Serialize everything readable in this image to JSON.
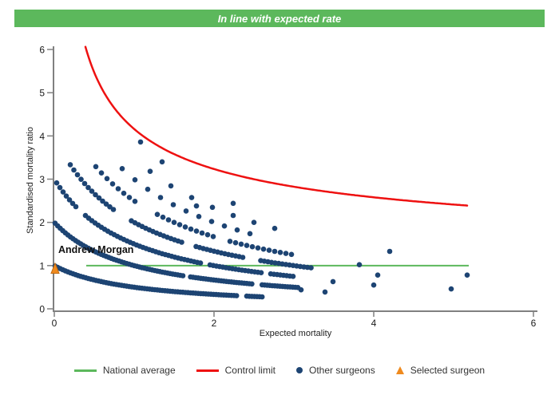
{
  "banner": {
    "text": "In line with expected rate",
    "bg_color": "#5cb85c",
    "text_color": "#ffffff"
  },
  "chart_data": {
    "type": "scatter",
    "title": "In line with expected rate",
    "xlabel": "Expected mortality",
    "ylabel": "Standardised mortality ratio",
    "xlim": [
      0,
      6
    ],
    "ylim": [
      0,
      6
    ],
    "x_ticks": [
      0,
      2,
      4,
      6
    ],
    "y_ticks": [
      0,
      1,
      2,
      3,
      4,
      5,
      6
    ],
    "grid": false,
    "axis_color": "#808080",
    "tick_label_color": "#1a1a1a",
    "national_average": {
      "label": "National average",
      "color": "#5cb85c",
      "y": 1.0,
      "x_start": 0.4,
      "x_end": 5.19
    },
    "control_limit": {
      "label": "Control limit",
      "color": "#ee1111",
      "formula": "y = base + k / sqrt(x)",
      "base": 1,
      "k": 3.16,
      "x_start": 0.39,
      "x_end": 5.17,
      "y_end": 2.39
    },
    "other_surgeons": {
      "label": "Other surgeons",
      "color": "#1d4473",
      "bands_rule": "y = deaths / (1 + x)",
      "bands": [
        {
          "deaths": 1,
          "x_start": 0.01,
          "x_end": 2.62,
          "step": 0.032,
          "gaps": [
            [
              2.3,
              2.38
            ]
          ]
        },
        {
          "deaths": 2,
          "x_start": 0.01,
          "x_end": 3.05,
          "step": 0.032,
          "gaps": [
            [
              1.62,
              1.7
            ],
            [
              2.48,
              2.58
            ]
          ]
        },
        {
          "deaths": 3,
          "x_start": 0.03,
          "x_end": 3.02,
          "step": 0.04,
          "gaps": [
            [
              0.3,
              0.38
            ],
            [
              1.85,
              1.95
            ],
            [
              2.6,
              2.7
            ]
          ]
        },
        {
          "deaths": 4,
          "x_start": 0.2,
          "x_end": 3.25,
          "step": 0.045,
          "gaps": [
            [
              0.75,
              0.95
            ],
            [
              1.6,
              1.75
            ],
            [
              2.4,
              2.55
            ]
          ]
        },
        {
          "deaths": 5,
          "x_start": 0.52,
          "x_end": 2.98,
          "step": 0.07,
          "gaps": [
            [
              1.05,
              1.25
            ],
            [
              2.0,
              2.2
            ]
          ]
        },
        {
          "deaths": 6,
          "x_start": 0.85,
          "x_end": 2.6,
          "step": 0.16,
          "gaps": []
        },
        {
          "deaths": 7,
          "x_start": 1.2,
          "x_end": 2.8,
          "step": 0.26,
          "gaps": []
        }
      ],
      "points": [
        [
          1.08,
          3.86
        ],
        [
          1.35,
          3.4
        ],
        [
          1.78,
          2.38
        ],
        [
          2.24,
          2.44
        ],
        [
          3.09,
          0.44
        ],
        [
          3.39,
          0.39
        ],
        [
          3.49,
          0.63
        ],
        [
          3.82,
          1.02
        ],
        [
          4.0,
          0.55
        ],
        [
          4.05,
          0.78
        ],
        [
          4.2,
          1.33
        ],
        [
          4.97,
          0.46
        ],
        [
          5.17,
          0.78
        ]
      ]
    },
    "selected_surgeon": {
      "label": "Andrew Morgan",
      "x": 0.0,
      "y": 0.97,
      "color": "#ef8a1e"
    }
  },
  "legend": {
    "items": [
      {
        "label": "National average",
        "swatch": "line",
        "color": "#5cb85c"
      },
      {
        "label": "Control limit",
        "swatch": "line",
        "color": "#ee1111"
      },
      {
        "label": "Other surgeons",
        "swatch": "dot",
        "color": "#1d4473"
      },
      {
        "label": "Selected surgeon",
        "swatch": "triangle",
        "color": "#ef8a1e"
      }
    ]
  }
}
